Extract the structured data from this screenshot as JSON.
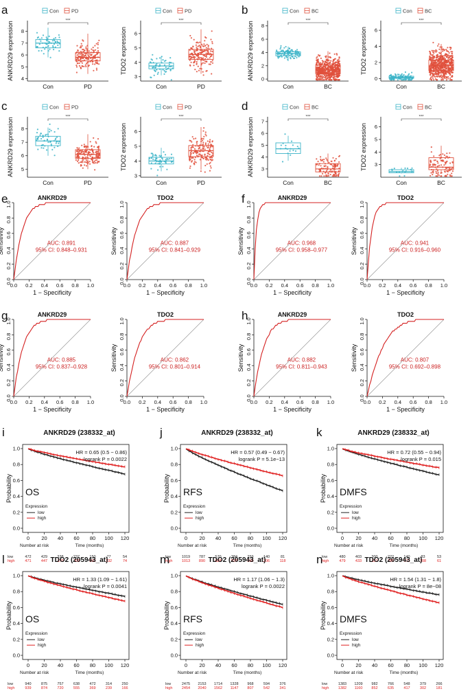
{
  "colors": {
    "con": "#3cb4c8",
    "bc_pd": "#e0503c",
    "roc": "#d42020",
    "km_low": "#222222",
    "km_high": "#e02020"
  },
  "box_panels": [
    {
      "letter": "a",
      "ylabel": "ANKRD29 expression",
      "legend": [
        "Con",
        "PD"
      ],
      "categories": [
        "Con",
        "PD"
      ],
      "yticks": [
        4,
        5,
        6,
        7,
        8
      ],
      "ylim": [
        3.8,
        8.9
      ],
      "sig": "***",
      "groups": [
        {
          "q1": 6.6,
          "med": 7.0,
          "q3": 7.3,
          "wlo": 5.8,
          "whi": 8.3,
          "n": 55,
          "spread": 0.4
        },
        {
          "q1": 5.5,
          "med": 5.8,
          "q3": 6.2,
          "wlo": 4.4,
          "whi": 7.8,
          "n": 170,
          "spread": 0.55
        }
      ]
    },
    {
      "letter": "",
      "ylabel": "TDO2 expression",
      "legend": [
        "Con",
        "PD"
      ],
      "categories": [
        "Con",
        "PD"
      ],
      "yticks": [
        3,
        4,
        5,
        6
      ],
      "ylim": [
        2.7,
        6.9
      ],
      "sig": "***",
      "groups": [
        {
          "q1": 3.55,
          "med": 3.75,
          "q3": 3.95,
          "wlo": 3.1,
          "whi": 4.4,
          "n": 55,
          "spread": 0.35
        },
        {
          "q1": 4.2,
          "med": 4.55,
          "q3": 4.9,
          "wlo": 3.2,
          "whi": 6.3,
          "n": 170,
          "spread": 0.55
        }
      ]
    },
    {
      "letter": "b",
      "ylabel": "ANKRD29 expression",
      "legend": [
        "Con",
        "BC"
      ],
      "categories": [
        "Con",
        "BC"
      ],
      "yticks": [
        0,
        2,
        4,
        6,
        8
      ],
      "ylim": [
        -0.3,
        8.8
      ],
      "sig": "***",
      "groups": [
        {
          "q1": 3.5,
          "med": 3.85,
          "q3": 4.1,
          "wlo": 2.7,
          "whi": 4.9,
          "n": 100,
          "spread": 0.4
        },
        {
          "q1": 0.8,
          "med": 1.4,
          "q3": 2.1,
          "wlo": 0.0,
          "whi": 4.2,
          "n": 600,
          "spread": 0.9
        }
      ]
    },
    {
      "letter": "",
      "ylabel": "TDO2 expression",
      "legend": [
        "Con",
        "BC"
      ],
      "categories": [
        "Con",
        "BC"
      ],
      "yticks": [
        0,
        2,
        4,
        6
      ],
      "ylim": [
        -0.3,
        7.2
      ],
      "sig": "***",
      "groups": [
        {
          "q1": 0.05,
          "med": 0.15,
          "q3": 0.3,
          "wlo": 0.0,
          "whi": 0.6,
          "n": 100,
          "spread": 0.25
        },
        {
          "q1": 1.0,
          "med": 1.6,
          "q3": 2.3,
          "wlo": 0.0,
          "whi": 4.3,
          "n": 600,
          "spread": 0.95
        }
      ]
    },
    {
      "letter": "c",
      "ylabel": "ANKRD29 expression",
      "legend": [
        "Con",
        "PD"
      ],
      "categories": [
        "Con",
        "PD"
      ],
      "yticks": [
        5,
        6,
        7,
        8
      ],
      "ylim": [
        4.4,
        8.9
      ],
      "sig": "***",
      "groups": [
        {
          "q1": 6.75,
          "med": 7.1,
          "q3": 7.45,
          "wlo": 6.0,
          "whi": 8.1,
          "n": 55,
          "spread": 0.4
        },
        {
          "q1": 5.8,
          "med": 6.1,
          "q3": 6.45,
          "wlo": 5.0,
          "whi": 7.6,
          "n": 170,
          "spread": 0.45
        }
      ]
    },
    {
      "letter": "",
      "ylabel": "TDO2 expression",
      "legend": [
        "Con",
        "PD"
      ],
      "categories": [
        "Con",
        "PD"
      ],
      "yticks": [
        3,
        4,
        5,
        6
      ],
      "ylim": [
        2.9,
        7.0
      ],
      "sig": "***",
      "groups": [
        {
          "q1": 3.8,
          "med": 4.0,
          "q3": 4.25,
          "wlo": 3.3,
          "whi": 4.9,
          "n": 55,
          "spread": 0.35
        },
        {
          "q1": 4.3,
          "med": 4.7,
          "q3": 5.05,
          "wlo": 3.4,
          "whi": 6.3,
          "n": 170,
          "spread": 0.55
        }
      ]
    },
    {
      "letter": "d",
      "ylabel": "ANKRD29 expression",
      "legend": [
        "Con",
        "BC"
      ],
      "categories": [
        "Con",
        "BC"
      ],
      "yticks": [
        3,
        4,
        5,
        6,
        7
      ],
      "ylim": [
        2.3,
        7.4
      ],
      "sig": "***",
      "groups": [
        {
          "q1": 4.3,
          "med": 4.7,
          "q3": 5.2,
          "wlo": 3.7,
          "whi": 5.8,
          "n": 18,
          "spread": 0.5
        },
        {
          "q1": 2.75,
          "med": 3.0,
          "q3": 3.45,
          "wlo": 2.5,
          "whi": 4.3,
          "n": 110,
          "spread": 0.5
        }
      ]
    },
    {
      "letter": "",
      "ylabel": "TDO2 expression",
      "legend": [
        "Con",
        "BC"
      ],
      "categories": [
        "Con",
        "BC"
      ],
      "yticks": [
        3,
        4,
        5,
        6
      ],
      "ylim": [
        2.0,
        6.8
      ],
      "sig": "***",
      "groups": [
        {
          "q1": 2.35,
          "med": 2.45,
          "q3": 2.6,
          "wlo": 2.3,
          "whi": 2.75,
          "n": 18,
          "spread": 0.15
        },
        {
          "q1": 2.6,
          "med": 2.8,
          "q3": 3.55,
          "wlo": 2.3,
          "whi": 4.5,
          "n": 110,
          "spread": 0.6
        }
      ]
    }
  ],
  "roc_panels": [
    {
      "letter": "e",
      "title": "ANKRD29",
      "auc": "AUC: 0.891",
      "ci": "95% CI: 0.848–0.931",
      "k": 8.5
    },
    {
      "letter": "",
      "title": "TDO2",
      "auc": "AUC: 0.887",
      "ci": "95% CI: 0.841–0.929",
      "k": 8.0
    },
    {
      "letter": "f",
      "title": "ANKRD29",
      "auc": "AUC: 0.968",
      "ci": "95% CI: 0.958–0.977",
      "k": 30
    },
    {
      "letter": "",
      "title": "TDO2",
      "auc": "AUC: 0.941",
      "ci": "95% CI: 0.916–0.960",
      "k": 16
    },
    {
      "letter": "g",
      "title": "ANKRD29",
      "auc": "AUC: 0.885",
      "ci": "95% CI: 0.837–0.928",
      "k": 8.0
    },
    {
      "letter": "",
      "title": "TDO2",
      "auc": "AUC: 0.862",
      "ci": "95% CI: 0.801–0.914",
      "k": 6.5
    },
    {
      "letter": "h",
      "title": "ANKRD29",
      "auc": "AUC: 0.882",
      "ci": "95% CI: 0.811–0.943",
      "k": 7.5
    },
    {
      "letter": "",
      "title": "TDO2",
      "auc": "AUC: 0.807",
      "ci": "95% CI: 0.692–0.898",
      "k": 4.5
    }
  ],
  "roc_axes": {
    "xlabel": "1 − Specificity",
    "ylabel": "Sensitivity",
    "ticks": [
      "0.0",
      "0.2",
      "0.4",
      "0.6",
      "0.8",
      "1.0"
    ]
  },
  "km_panels": [
    {
      "letter": "i",
      "title": "ANKRD29 (238332_at)",
      "hr": "HR = 0.65 (0.5 − 0.86)",
      "logrank": "logrank P = 0.0022",
      "endpoint": "OS",
      "low_end": 0.68,
      "high_end": 0.77,
      "low_risk": [
        "472",
        "429",
        "338",
        "237",
        "150",
        "77",
        "54"
      ],
      "high_risk": [
        "471",
        "447",
        "370",
        "302",
        "202",
        "132",
        "74"
      ]
    },
    {
      "letter": "j",
      "title": "ANKRD29 (238332_at)",
      "hr": "HR = 0.57 (0.49 − 0.67)",
      "logrank": "logrank P = 5.1e−13",
      "endpoint": "RFS",
      "low_end": 0.47,
      "high_end": 0.66,
      "low_risk": [
        "1019",
        "787",
        "570",
        "384",
        "259",
        "140",
        "81"
      ],
      "high_risk": [
        "1013",
        "890",
        "688",
        "523",
        "364",
        "206",
        "118"
      ]
    },
    {
      "letter": "k",
      "title": "ANKRD29 (238332_at)",
      "hr": "HR = 0.72 (0.55 − 0.94)",
      "logrank": "logrank P = 0.015",
      "endpoint": "DMFS",
      "low_end": 0.67,
      "high_end": 0.76,
      "low_risk": [
        "480",
        "403",
        "300",
        "222",
        "140",
        "83",
        "53"
      ],
      "high_risk": [
        "479",
        "433",
        "351",
        "265",
        "172",
        "108",
        "61"
      ]
    },
    {
      "letter": "l",
      "title": "TDO2 (205943_at)",
      "hr": "HR = 1.33 (1.09 − 1.61)",
      "logrank": "logrank P = 0.0041",
      "endpoint": "OS",
      "low_end": 0.74,
      "high_end": 0.68,
      "low_risk": [
        "940",
        "875",
        "757",
        "638",
        "472",
        "314",
        "250"
      ],
      "high_risk": [
        "939",
        "874",
        "720",
        "555",
        "369",
        "239",
        "166"
      ]
    },
    {
      "letter": "m",
      "title": "TDO2 (205943_at)",
      "hr": "HR = 1.17 (1.06 − 1.3)",
      "logrank": "logrank P = 0.0022",
      "endpoint": "RFS",
      "low_end": 0.64,
      "high_end": 0.6,
      "low_risk": [
        "2475",
        "2153",
        "1714",
        "1328",
        "968",
        "594",
        "376"
      ],
      "high_risk": [
        "2454",
        "2040",
        "1562",
        "1147",
        "807",
        "542",
        "341"
      ]
    },
    {
      "letter": "n",
      "title": "TDO2 (205943_at)",
      "hr": "HR = 1.54 (1.31 − 1.8)",
      "logrank": "logrank P = 8e−08",
      "endpoint": "DMFS",
      "low_end": 0.76,
      "high_end": 0.66,
      "low_risk": [
        "1383",
        "1209",
        "982",
        "766",
        "548",
        "379",
        "266"
      ],
      "high_risk": [
        "1382",
        "1160",
        "852",
        "635",
        "417",
        "302",
        "181"
      ]
    }
  ],
  "km_axes": {
    "ylabel": "Probability",
    "xlabel": "Time (months)",
    "xticks": [
      "0",
      "20",
      "40",
      "60",
      "80",
      "100",
      "120"
    ],
    "yticks": [
      "0.0",
      "0.2",
      "0.4",
      "0.6",
      "0.8",
      "1.0"
    ],
    "legend_title": "Expression",
    "legend_low": "low",
    "legend_high": "high",
    "risk_label": "Number at risk",
    "low_label": "low",
    "high_label": "high"
  },
  "chart_data": [
    {
      "type": "box",
      "panel": "a-left",
      "categories": [
        "Con",
        "PD"
      ],
      "ylabel": "ANKRD29 expression",
      "medians": [
        7.0,
        5.8
      ]
    },
    {
      "type": "box",
      "panel": "a-right",
      "categories": [
        "Con",
        "PD"
      ],
      "ylabel": "TDO2 expression",
      "medians": [
        3.75,
        4.55
      ]
    },
    {
      "type": "box",
      "panel": "b-left",
      "categories": [
        "Con",
        "BC"
      ],
      "ylabel": "ANKRD29 expression",
      "medians": [
        3.85,
        1.4
      ]
    },
    {
      "type": "box",
      "panel": "b-right",
      "categories": [
        "Con",
        "BC"
      ],
      "ylabel": "TDO2 expression",
      "medians": [
        0.15,
        1.6
      ]
    },
    {
      "type": "box",
      "panel": "c-left",
      "categories": [
        "Con",
        "PD"
      ],
      "ylabel": "ANKRD29 expression",
      "medians": [
        7.1,
        6.1
      ]
    },
    {
      "type": "box",
      "panel": "c-right",
      "categories": [
        "Con",
        "PD"
      ],
      "ylabel": "TDO2 expression",
      "medians": [
        4.0,
        4.7
      ]
    },
    {
      "type": "box",
      "panel": "d-left",
      "categories": [
        "Con",
        "BC"
      ],
      "ylabel": "ANKRD29 expression",
      "medians": [
        4.7,
        3.0
      ]
    },
    {
      "type": "box",
      "panel": "d-right",
      "categories": [
        "Con",
        "BC"
      ],
      "ylabel": "TDO2 expression",
      "medians": [
        2.45,
        2.8
      ]
    },
    {
      "type": "line",
      "panel": "e-h",
      "description_values": {
        "AUC": [
          0.891,
          0.887,
          0.968,
          0.941,
          0.885,
          0.862,
          0.882,
          0.807
        ]
      }
    },
    {
      "type": "line",
      "panel": "i-n",
      "x_unit": "months",
      "xlim": [
        0,
        120
      ],
      "ylim": [
        0,
        1
      ]
    }
  ]
}
